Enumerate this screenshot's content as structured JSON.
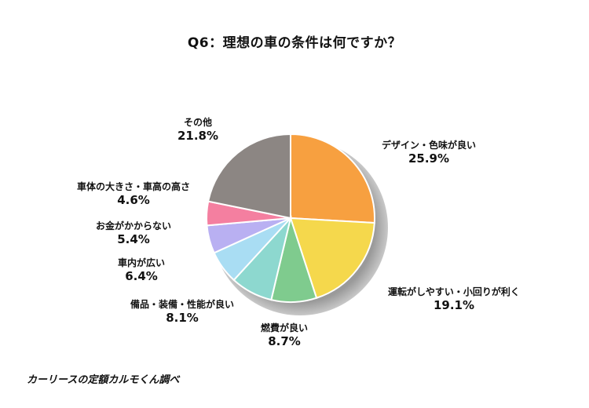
{
  "chart_data": {
    "type": "pie",
    "title": "Q6：理想の車の条件は何ですか？",
    "categories": [
      "デザイン・色味が良い",
      "運転がしやすい・小回りが利く",
      "燃費が良い",
      "備品・装備・性能が良い",
      "車内が広い",
      "お金がかからない",
      "車体の大きさ・車高の高さ",
      "その他"
    ],
    "values": [
      25.9,
      19.1,
      8.7,
      8.1,
      6.4,
      5.4,
      4.6,
      21.8
    ],
    "value_labels": [
      "25.9%",
      "19.1%",
      "8.7%",
      "8.1%",
      "6.4%",
      "5.4%",
      "4.6%",
      "21.8%"
    ],
    "colors": [
      "#F7A040",
      "#F5D84C",
      "#7FCB8E",
      "#8DD8CF",
      "#A9DDF3",
      "#B9B0F2",
      "#F47FA0",
      "#8C8683"
    ],
    "start": "12 o'clock",
    "direction": "clockwise"
  },
  "source_note": "カーリースの定額カルモくん調べ"
}
